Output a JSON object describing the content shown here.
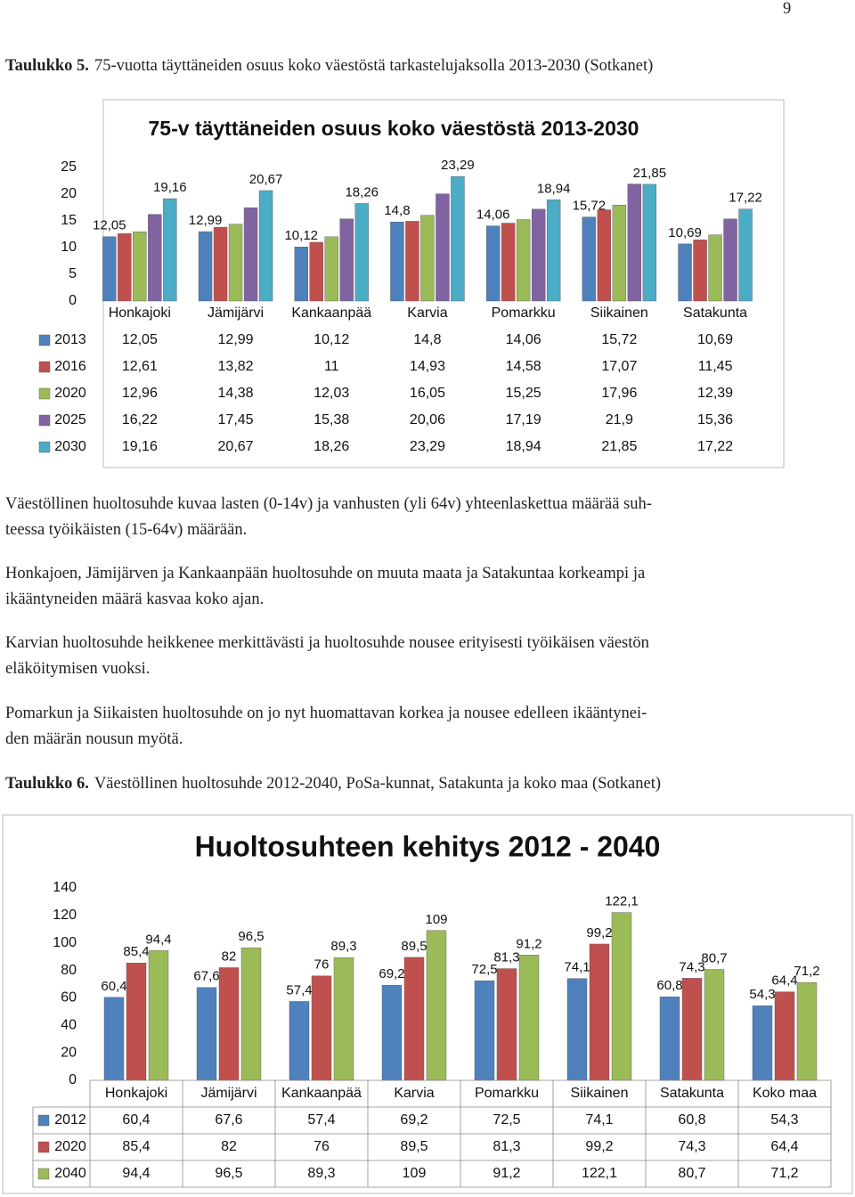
{
  "page_number": "9",
  "caption_1": {
    "label": "Taulukko 5.",
    "text": "75-vuotta täyttäneiden osuus koko väestöstä tarkastelujaksolla 2013-2030 (Sotkanet)"
  },
  "paragraphs": [
    [
      "Väestöllinen huoltosuhde kuvaa lasten (0-14v) ja vanhusten (yli 64v) yhteenlaskettua määrää suh-",
      "teessa työikäisten (15-64v) määrään."
    ],
    [
      "Honkajoen, Jämijärven ja Kankaanpään huoltosuhde on muuta maata ja Satakuntaa korkeampi ja",
      "ikääntyneiden määrä kasvaa koko ajan."
    ],
    [
      "Karvian huoltosuhde heikkenee merkittävästi ja huoltosuhde nousee erityisesti työikäisen väestön",
      "eläköitymisen vuoksi."
    ],
    [
      "Pomarkun ja Siikaisten huoltosuhde on jo nyt huomattavan korkea ja nousee edelleen ikääntynei-",
      "den määrän  nousun myötä."
    ]
  ],
  "caption_2": {
    "label": "Taulukko 6.",
    "text": "Väestöllinen huoltosuhde 2012-2040, PoSa-kunnat, Satakunta ja koko maa (Sotkanet)"
  },
  "chart_data": [
    {
      "type": "bar",
      "title": "75-v täyttäneiden osuus koko väestöstä 2013-2030",
      "categories": [
        "Honkajoki",
        "Jämijärvi",
        "Kankaanpää",
        "Karvia",
        "Pomarkku",
        "Siikainen",
        "Satakunta"
      ],
      "ylim": [
        0,
        25
      ],
      "yticks": [
        0,
        5,
        10,
        15,
        20,
        25
      ],
      "data_table": true,
      "series": [
        {
          "name": "2013",
          "color": "#4f81bd",
          "data_labels": true,
          "values": [
            12.05,
            12.99,
            10.12,
            14.8,
            14.06,
            15.72,
            10.69
          ],
          "value_labels": [
            "12,05",
            "12,99",
            "10,12",
            "14,8",
            "14,06",
            "15,72",
            "10,69"
          ]
        },
        {
          "name": "2016",
          "color": "#c0504d",
          "data_labels": false,
          "values": [
            12.61,
            13.82,
            11,
            14.93,
            14.58,
            17.07,
            11.45
          ],
          "value_labels": [
            "12,61",
            "13,82",
            "11",
            "14,93",
            "14,58",
            "17,07",
            "11,45"
          ]
        },
        {
          "name": "2020",
          "color": "#9bbb59",
          "data_labels": false,
          "values": [
            12.96,
            14.38,
            12.03,
            16.05,
            15.25,
            17.96,
            12.39
          ],
          "value_labels": [
            "12,96",
            "14,38",
            "12,03",
            "16,05",
            "15,25",
            "17,96",
            "12,39"
          ]
        },
        {
          "name": "2025",
          "color": "#8064a2",
          "data_labels": false,
          "values": [
            16.22,
            17.45,
            15.38,
            20.06,
            17.19,
            21.9,
            15.36
          ],
          "value_labels": [
            "16,22",
            "17,45",
            "15,38",
            "20,06",
            "17,19",
            "21,9",
            "15,36"
          ]
        },
        {
          "name": "2030",
          "color": "#4bacc6",
          "data_labels": true,
          "values": [
            19.16,
            20.67,
            18.26,
            23.29,
            18.94,
            21.85,
            17.22
          ],
          "value_labels": [
            "19,16",
            "20,67",
            "18,26",
            "23,29",
            "18,94",
            "21,85",
            "17,22"
          ]
        }
      ]
    },
    {
      "type": "bar",
      "title": "Huoltosuhteen kehitys 2012 - 2040",
      "categories": [
        "Honkajoki",
        "Jämijärvi",
        "Kankaanpää",
        "Karvia",
        "Pomarkku",
        "Siikainen",
        "Satakunta",
        "Koko maa"
      ],
      "ylim": [
        0,
        140
      ],
      "yticks": [
        0,
        20,
        40,
        60,
        80,
        100,
        120,
        140
      ],
      "data_table": true,
      "series": [
        {
          "name": "2012",
          "color": "#4f81bd",
          "data_labels": true,
          "values": [
            60.4,
            67.6,
            57.4,
            69.2,
            72.5,
            74.1,
            60.8,
            54.3
          ],
          "value_labels": [
            "60,4",
            "67,6",
            "57,4",
            "69,2",
            "72,5",
            "74,1",
            "60,8",
            "54,3"
          ]
        },
        {
          "name": "2020",
          "color": "#c0504d",
          "data_labels": true,
          "values": [
            85.4,
            82,
            76,
            89.5,
            81.3,
            99.2,
            74.3,
            64.4
          ],
          "value_labels": [
            "85,4",
            "82",
            "76",
            "89,5",
            "81,3",
            "99,2",
            "74,3",
            "64,4"
          ]
        },
        {
          "name": "2040",
          "color": "#9bbb59",
          "data_labels": true,
          "values": [
            94.4,
            96.5,
            89.3,
            109,
            91.2,
            122.1,
            80.7,
            71.2
          ],
          "value_labels": [
            "94,4",
            "96,5",
            "89,3",
            "109",
            "91,2",
            "122,1",
            "80,7",
            "71,2"
          ]
        }
      ]
    }
  ]
}
